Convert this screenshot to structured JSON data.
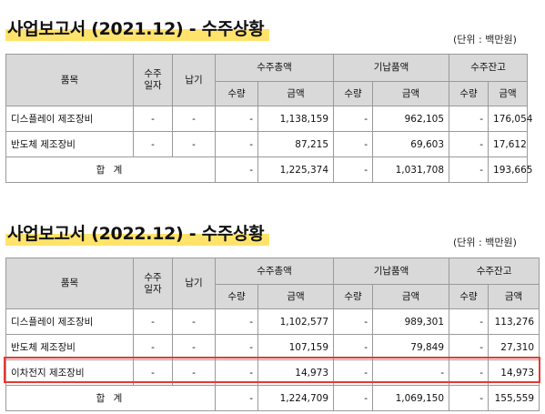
{
  "report1": {
    "title": "사업보고서 (2021.12) - 수주상황",
    "unit": "(단위 : 백만원)",
    "headers": {
      "item": "품목",
      "order_date_1": "수주",
      "order_date_2": "일자",
      "delivery": "납기",
      "total_order": "수주총액",
      "delivered": "기납품액",
      "backlog": "수주잔고",
      "qty": "수량",
      "amount": "금액"
    },
    "rows": [
      {
        "item": "디스플레이 제조장비",
        "date": "-",
        "delivery": "-",
        "q1": "-",
        "a1": "1,138,159",
        "q2": "-",
        "a2": "962,105",
        "q3": "-",
        "a3": "176,054"
      },
      {
        "item": "반도체 제조장비",
        "date": "-",
        "delivery": "-",
        "q1": "-",
        "a1": "87,215",
        "q2": "-",
        "a2": "69,603",
        "q3": "-",
        "a3": "17,612"
      }
    ],
    "total": {
      "label": "합 계",
      "q1": "-",
      "a1": "1,225,374",
      "q2": "-",
      "a2": "1,031,708",
      "q3": "-",
      "a3": "193,665"
    }
  },
  "report2": {
    "title": "사업보고서 (2022.12) - 수주상황",
    "unit": "(단위 : 백만원)",
    "headers": {
      "item": "품목",
      "order_date_1": "수주",
      "order_date_2": "일자",
      "delivery": "납기",
      "total_order": "수주총액",
      "delivered": "기납품액",
      "backlog": "수주잔고",
      "qty": "수량",
      "amount": "금액"
    },
    "rows": [
      {
        "item": "디스플레이 제조장비",
        "date": "-",
        "delivery": "-",
        "q1": "-",
        "a1": "1,102,577",
        "q2": "-",
        "a2": "989,301",
        "q3": "-",
        "a3": "113,276"
      },
      {
        "item": "반도체 제조장비",
        "date": "-",
        "delivery": "-",
        "q1": "-",
        "a1": "107,159",
        "q2": "-",
        "a2": "79,849",
        "q3": "-",
        "a3": "27,310"
      },
      {
        "item": "이차전지 제조장비",
        "date": "-",
        "delivery": "-",
        "q1": "-",
        "a1": "14,973",
        "q2": "-",
        "a2": "-",
        "q3": "-",
        "a3": "14,973"
      }
    ],
    "total": {
      "label": "합 계",
      "q1": "-",
      "a1": "1,224,709",
      "q2": "-",
      "a2": "1,069,150",
      "q3": "-",
      "a3": "155,559"
    },
    "highlight_color": "#e53935"
  },
  "colors": {
    "title_highlight": "#ffe36b",
    "header_bg": "#d9d9d9",
    "border": "#9a9a9a"
  }
}
